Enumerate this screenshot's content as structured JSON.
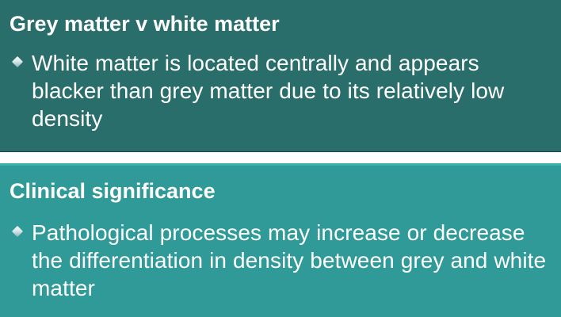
{
  "sections": [
    {
      "heading": "Grey matter v white matter",
      "bullets": [
        "White matter is located centrally and appears blacker than grey matter due to its relatively low density"
      ]
    },
    {
      "heading": "Clinical significance",
      "bullets": [
        "Pathological processes may increase or decrease the differentiation in density between grey and white matter"
      ]
    }
  ],
  "colors": {
    "top_panel": "#2a6e6b",
    "bottom_panel": "#2f9a98",
    "text": "#ffffff"
  },
  "icons": {
    "bullet": "diamond-bullet-icon"
  }
}
